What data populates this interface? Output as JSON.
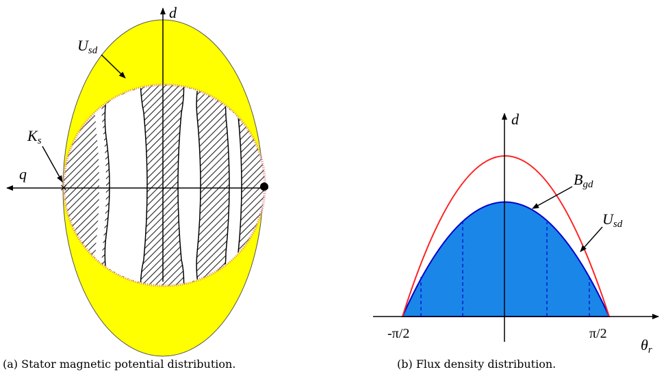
{
  "figure_a": {
    "axis_d": "d",
    "axis_q": "q",
    "label_usd": {
      "base": "U",
      "sub": "sd"
    },
    "label_ks": {
      "base": "K",
      "sub": "s"
    },
    "caption": "(a) Stator magnetic potential distribution."
  },
  "figure_b": {
    "axis_d": "d",
    "label_bgd": {
      "base": "B",
      "sub": "gd"
    },
    "label_usd": {
      "base": "U",
      "sub": "sd"
    },
    "tick_left": "-π/2",
    "tick_right": "π/2",
    "axis_theta": {
      "base": "θ",
      "sub": "r"
    },
    "caption": "(b) Flux density distribution."
  }
}
